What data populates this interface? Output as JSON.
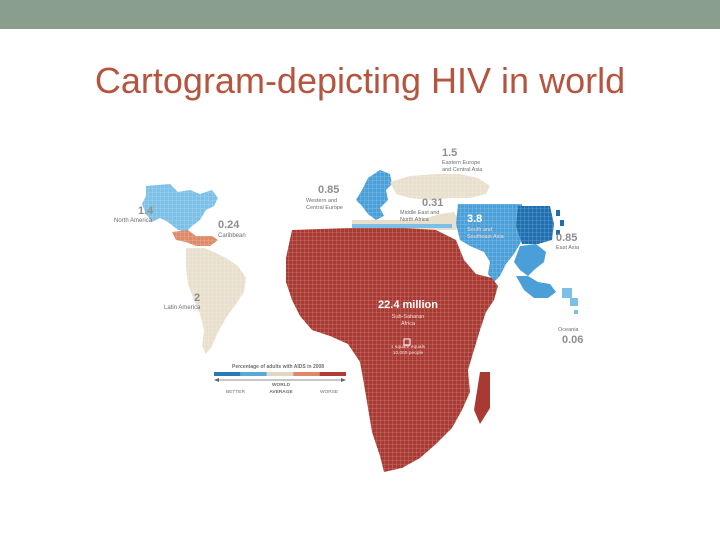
{
  "slide": {
    "title": "Cartogram-depicting HIV in world"
  },
  "regions": {
    "north_america": {
      "value": "1.4",
      "name": "North America"
    },
    "caribbean": {
      "value": "0.24",
      "name": "Caribbean"
    },
    "latin_america": {
      "value": "2",
      "name": "Latin America"
    },
    "western_europe": {
      "value": "0.85",
      "name_line1": "Western and",
      "name_line2": "Central Europe"
    },
    "eastern_europe": {
      "value": "1.5",
      "name_line1": "Eastern Europe",
      "name_line2": "and Central Asia"
    },
    "middle_east": {
      "value": "0.31",
      "name_line1": "Middle East and",
      "name_line2": "North Africa"
    },
    "south_asia": {
      "value": "3.8",
      "name_line1": "South and",
      "name_line2": "Southeast Asia"
    },
    "east_asia": {
      "value": "0.85",
      "name": "East Asia"
    },
    "oceania": {
      "value": "0.06",
      "name": "Oceania"
    },
    "sub_saharan_africa": {
      "value": "22.4 million",
      "name_line1": "Sub-Saharan",
      "name_line2": "Africa"
    }
  },
  "square_note": {
    "line1": "1 square equals",
    "line2": "10,000 people"
  },
  "legend": {
    "title": "Percentage of adults with AIDS in 2008",
    "better": "BETTER",
    "world_line1": "WORLD",
    "world_line2": "AVERAGE",
    "worse": "WORSE",
    "scale_colors": [
      "#2a7ab8",
      "#5aa8d8",
      "#e1d7c4",
      "#e0876a",
      "#b03b35"
    ]
  },
  "colors": {
    "title": "#b5543f",
    "topbar": "#8a9e8e",
    "dark_blue": "#1f6fb0",
    "mid_blue": "#4a9fd8",
    "light_blue": "#7cc0e8",
    "beige": "#e9dfcd",
    "salmon": "#de8a68",
    "dark_red": "#a93a33"
  }
}
